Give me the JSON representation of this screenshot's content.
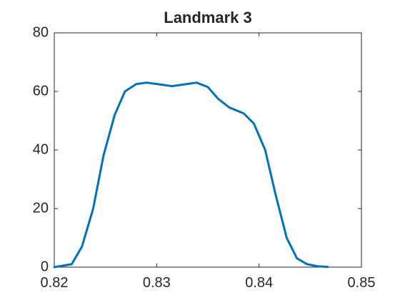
{
  "chart_data": {
    "type": "line",
    "title": "Landmark 3",
    "x": [
      0.82,
      0.8217,
      0.8227,
      0.8238,
      0.8248,
      0.8259,
      0.8269,
      0.828,
      0.829,
      0.8301,
      0.8315,
      0.8329,
      0.8339,
      0.835,
      0.836,
      0.8371,
      0.8385,
      0.8395,
      0.8406,
      0.8416,
      0.8427,
      0.8437,
      0.8447,
      0.8457,
      0.8467
    ],
    "series": [
      {
        "color": "#0072bd",
        "values": [
          0,
          1,
          7,
          20,
          38,
          52,
          60,
          62.5,
          63,
          62.5,
          61.8,
          62.5,
          63,
          61.5,
          57.5,
          54.5,
          52.5,
          49,
          40,
          25,
          10,
          3,
          1,
          0.3,
          0.1
        ]
      }
    ],
    "xlim": [
      0.82,
      0.85
    ],
    "xticks": [
      0.82,
      0.83,
      0.84,
      0.85
    ],
    "ylim": [
      0,
      80
    ],
    "yticks": [
      0,
      20,
      40,
      60,
      80
    ],
    "grid": false
  }
}
